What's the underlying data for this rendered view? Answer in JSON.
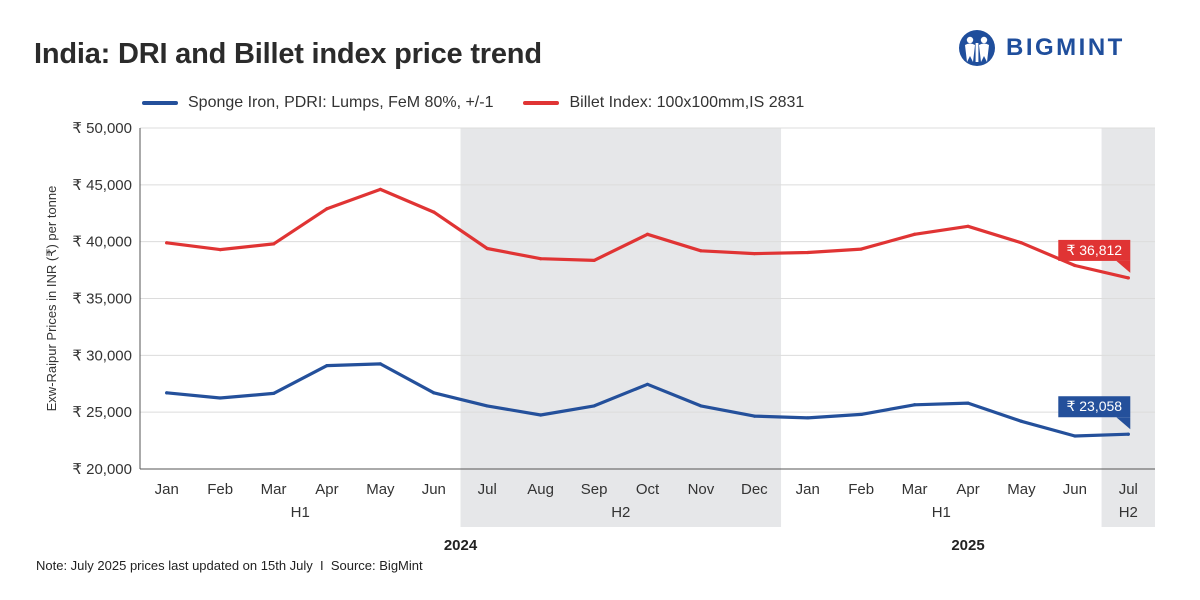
{
  "header": {
    "title": "India: DRI and Billet index price trend",
    "brand_name": "BIGMINT"
  },
  "colors": {
    "blue": "#24509b",
    "red": "#e03434",
    "shade": "#e6e7e9",
    "grid": "#dcdcdc"
  },
  "chart_data": {
    "type": "line",
    "title": "India: DRI and Billet index price trend",
    "ylabel": "Exw-Raipur Prices in INR (₹) per tonne",
    "xlabel": "",
    "ylim": [
      20000,
      50000
    ],
    "yticks": [
      20000,
      25000,
      30000,
      35000,
      40000,
      45000,
      50000
    ],
    "ytick_labels": [
      "₹ 20,000",
      "₹ 25,000",
      "₹ 30,000",
      "₹ 35,000",
      "₹ 40,000",
      "₹ 45,000",
      "₹ 50,000"
    ],
    "categories": [
      "Jan",
      "Feb",
      "Mar",
      "Apr",
      "May",
      "Jun",
      "Jul",
      "Aug",
      "Sep",
      "Oct",
      "Nov",
      "Dec",
      "Jan",
      "Feb",
      "Mar",
      "Apr",
      "May",
      "Jun",
      "Jul"
    ],
    "half_groups": [
      {
        "label": "H1",
        "start": 0,
        "end": 5,
        "shaded": false
      },
      {
        "label": "H2",
        "start": 6,
        "end": 11,
        "shaded": true
      },
      {
        "label": "H1",
        "start": 12,
        "end": 17,
        "shaded": false
      },
      {
        "label": "H2",
        "start": 18,
        "end": 18,
        "shaded": true
      }
    ],
    "year_groups": [
      {
        "label": "2024",
        "start": 0,
        "end": 11
      },
      {
        "label": "2025",
        "start": 12,
        "end": 18
      }
    ],
    "series": [
      {
        "name": "Sponge Iron, PDRI: Lumps, FeM 80%, +/-1",
        "color": "#24509b",
        "values": [
          26700,
          26250,
          26650,
          29100,
          29250,
          26700,
          25550,
          24750,
          25550,
          27450,
          25550,
          24650,
          24500,
          24800,
          25650,
          25800,
          24200,
          22900,
          23058
        ],
        "end_label": "₹ 23,058"
      },
      {
        "name": "Billet Index: 100x100mm,IS 2831",
        "color": "#e03434",
        "values": [
          39900,
          39300,
          39800,
          42900,
          44600,
          42600,
          39400,
          38500,
          38350,
          40650,
          39200,
          38950,
          39050,
          39350,
          40650,
          41350,
          39900,
          37900,
          36812
        ],
        "end_label": "₹ 36,812"
      }
    ],
    "legend_position": "top-left",
    "grid": true
  },
  "footer": {
    "note": "Note: July 2025 prices last updated on 15th July  I  Source: BigMint"
  }
}
